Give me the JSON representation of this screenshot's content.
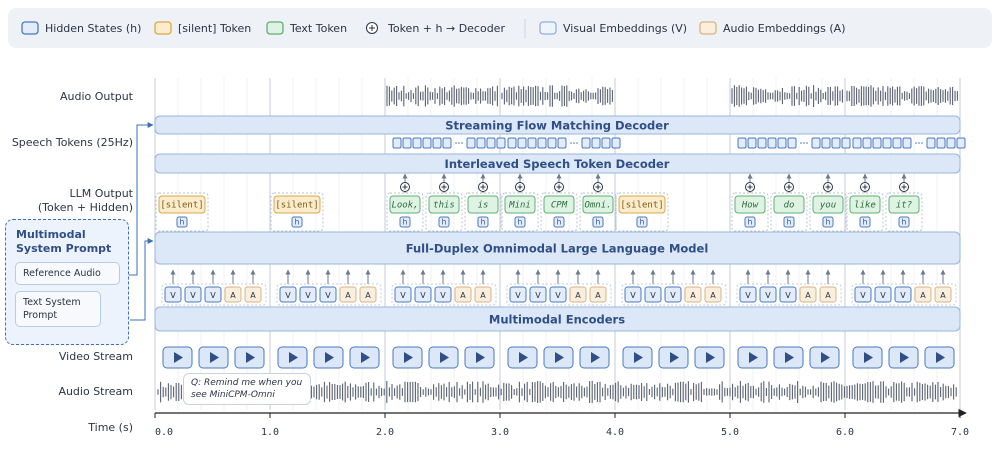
{
  "legend": [
    {
      "label": "Hidden States (h)",
      "kind": "hidden"
    },
    {
      "label": "[silent] Token",
      "kind": "silent"
    },
    {
      "label": "Text Token",
      "kind": "text"
    },
    {
      "label": "Token + h → Decoder",
      "kind": "plus"
    },
    {
      "label": "Visual Embeddings (V)",
      "kind": "visual"
    },
    {
      "label": "Audio Embeddings (A)",
      "kind": "audio"
    }
  ],
  "row_labels": {
    "audio_output": "Audio Output",
    "speech_tokens": "Speech Tokens (25Hz)",
    "llm_output": "LLM Output",
    "llm_output_sub": "(Token + Hidden)",
    "video_stream": "Video Stream",
    "audio_stream": "Audio Stream",
    "time": "Time (s)"
  },
  "blocks": {
    "flow_decoder": "Streaming Flow Matching Decoder",
    "speech_decoder": "Interleaved Speech Token Decoder",
    "llm": "Full-Duplex Omnimodal Large Language Model",
    "encoders": "Multimodal Encoders"
  },
  "system_prompt": {
    "title": "Multimodal System Prompt",
    "items": [
      "Reference Audio",
      "Text System Prompt"
    ]
  },
  "hidden_label": "h",
  "encoder_inputs": [
    "V",
    "V",
    "V",
    "A",
    "A"
  ],
  "segments": [
    {
      "tokens": [
        "[silent]"
      ],
      "speaking": false
    },
    {
      "tokens": [
        "[silent]"
      ],
      "speaking": false
    },
    {
      "tokens": [
        "Look,",
        "this",
        "is"
      ],
      "speaking": true
    },
    {
      "tokens": [
        "Mini",
        "CPM",
        "Omni."
      ],
      "speaking": true
    },
    {
      "tokens": [
        "[silent]"
      ],
      "speaking": false
    },
    {
      "tokens": [
        "How",
        "do",
        "you"
      ],
      "speaking": true
    },
    {
      "tokens": [
        "like",
        "it?"
      ],
      "speaking": true
    }
  ],
  "annotation": "Q: Remind me when you see MiniCPM-Omni",
  "time_ticks": [
    "0.0",
    "1.0",
    "2.0",
    "3.0",
    "4.0",
    "5.0",
    "6.0",
    "7.0"
  ]
}
